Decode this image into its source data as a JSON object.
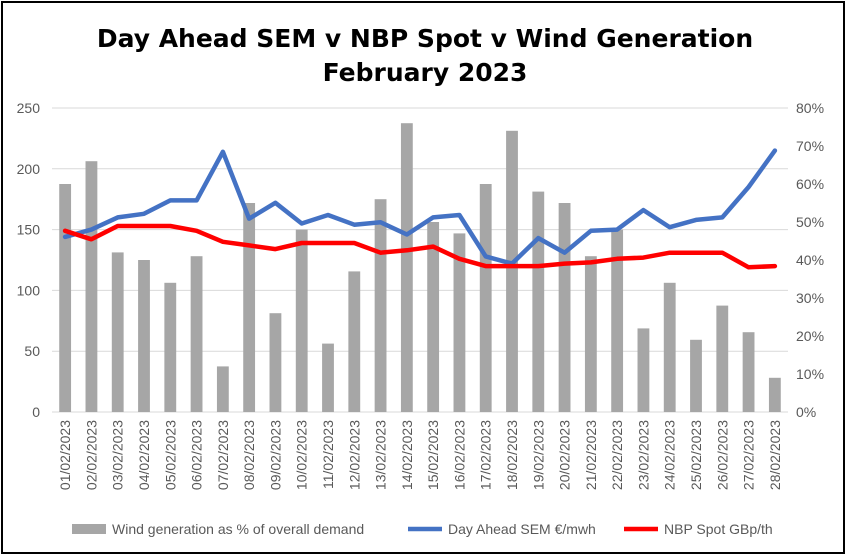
{
  "chart_data": {
    "type": "bar",
    "title_line1": "Day Ahead SEM v NBP Spot v Wind Generation",
    "title_line2": "February 2023",
    "categories": [
      "01/02/2023",
      "02/02/2023",
      "03/02/2023",
      "04/02/2023",
      "05/02/2023",
      "06/02/2023",
      "07/02/2023",
      "08/02/2023",
      "09/02/2023",
      "10/02/2023",
      "11/02/2023",
      "12/02/2023",
      "13/02/2023",
      "14/02/2023",
      "15/02/2023",
      "16/02/2023",
      "17/02/2023",
      "18/02/2023",
      "19/02/2023",
      "20/02/2023",
      "21/02/2023",
      "22/02/2023",
      "23/02/2023",
      "24/02/2023",
      "25/02/2023",
      "26/02/2023",
      "27/02/2023",
      "28/02/2023"
    ],
    "left_axis": {
      "ylim": [
        0,
        250
      ],
      "ticks": [
        "0",
        "50",
        "100",
        "150",
        "200",
        "250"
      ]
    },
    "right_axis": {
      "ylim": [
        0,
        0.8
      ],
      "ticks": [
        "0%",
        "10%",
        "20%",
        "30%",
        "40%",
        "50%",
        "60%",
        "70%",
        "80%"
      ]
    },
    "grid": true,
    "legend_position": "bottom",
    "series": [
      {
        "name": "Wind generation as % of overall demand",
        "type": "bar",
        "axis": "right",
        "color": "#a6a6a6",
        "values": [
          0.6,
          0.66,
          0.42,
          0.4,
          0.34,
          0.41,
          0.12,
          0.55,
          0.26,
          0.48,
          0.18,
          0.37,
          0.56,
          0.76,
          0.5,
          0.47,
          0.6,
          0.74,
          0.58,
          0.55,
          0.41,
          0.48,
          0.22,
          0.34,
          0.19,
          0.28,
          0.21,
          0.09
        ]
      },
      {
        "name": "Day Ahead SEM €/mwh",
        "type": "line",
        "axis": "left",
        "color": "#4472c4",
        "values": [
          144,
          150,
          160,
          163,
          174,
          174,
          214,
          159,
          172,
          155,
          162,
          154,
          156,
          146,
          160,
          162,
          128,
          122,
          143,
          131,
          149,
          150,
          166,
          152,
          158,
          160,
          185,
          215
        ]
      },
      {
        "name": "NBP Spot GBp/th",
        "type": "line",
        "axis": "left",
        "color": "#ff0000",
        "values": [
          149,
          142,
          153,
          153,
          153,
          149,
          140,
          137,
          134,
          139,
          139,
          139,
          131,
          133,
          136,
          126,
          120,
          120,
          120,
          122,
          123,
          126,
          127,
          131,
          131,
          131,
          119,
          120
        ]
      }
    ]
  }
}
